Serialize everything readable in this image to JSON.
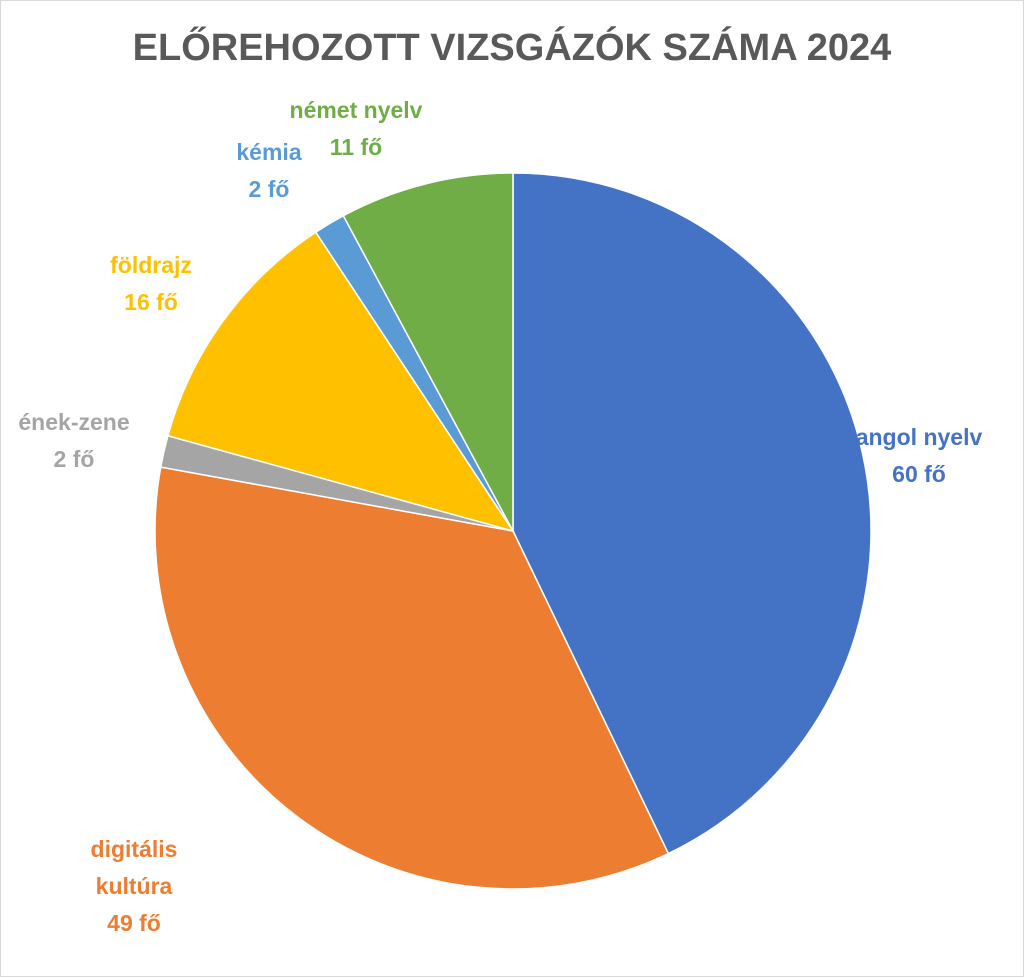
{
  "chart_data": {
    "type": "pie",
    "title": "ELŐREHOZOTT VIZSGÁZÓK SZÁMA 2024",
    "categories": [
      "angol nyelv",
      "digitális kultúra",
      "ének-zene",
      "földrajz",
      "kémia",
      "német nyelv"
    ],
    "values": [
      60,
      49,
      2,
      16,
      2,
      11
    ],
    "value_labels": [
      "60 fő",
      "49 fő",
      "2 fő",
      "16 fő",
      "2 fő",
      "11 fő"
    ],
    "colors": [
      "#4472c4",
      "#ed7d31",
      "#a5a5a5",
      "#ffc000",
      "#5b9bd5",
      "#70ad47"
    ]
  }
}
